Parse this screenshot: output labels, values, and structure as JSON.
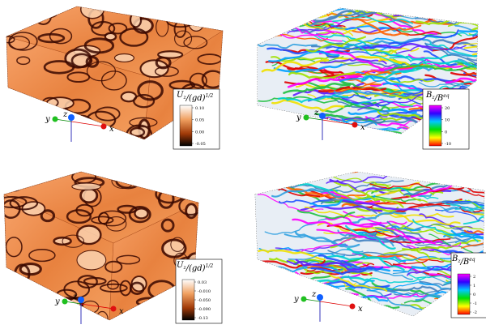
{
  "panels": [
    {
      "colorbar_label": [
        "U",
        "z",
        "/(gd)",
        "1/2"
      ],
      "colorbar_ticks": [
        "0.10",
        "0.05",
        "0.00",
        "-0.05"
      ],
      "axes": [
        "x",
        "y",
        "z"
      ]
    },
    {
      "colorbar_label": [
        "B",
        "z",
        "/B",
        "eq"
      ],
      "colorbar_ticks": [
        "20",
        "10",
        "0",
        "-10"
      ],
      "axes": [
        "x",
        "y",
        "z"
      ]
    },
    {
      "colorbar_label": [
        "U",
        "z",
        "/(gd)",
        "1/2"
      ],
      "colorbar_ticks": [
        "0.03",
        "-0.010",
        "-0.050",
        "-0.090",
        "-0.13"
      ],
      "axes": [
        "x",
        "y",
        "z"
      ]
    },
    {
      "colorbar_label": [
        "B",
        "z",
        "/B",
        "eq"
      ],
      "colorbar_ticks": [
        "2",
        "1",
        "0",
        "-1",
        "-2"
      ],
      "axes": [
        "x",
        "y",
        "z"
      ]
    }
  ]
}
